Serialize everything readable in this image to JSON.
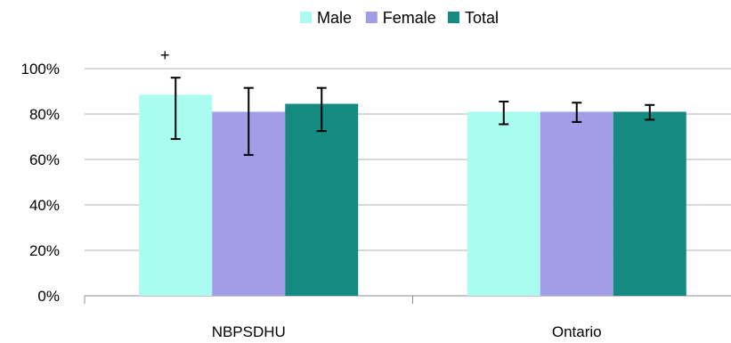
{
  "chart_data": {
    "type": "bar",
    "categories": [
      "NBPSDHU",
      "Ontario"
    ],
    "series": [
      {
        "name": "Male",
        "color": "#aafcf0",
        "values": [
          88.5,
          81
        ],
        "error_low": [
          69,
          75.5
        ],
        "error_high": [
          96,
          85.5
        ]
      },
      {
        "name": "Female",
        "color": "#a39de8",
        "values": [
          81,
          81
        ],
        "error_low": [
          62,
          76.5
        ],
        "error_high": [
          91.5,
          85
        ]
      },
      {
        "name": "Total",
        "color": "#148a80",
        "values": [
          84.5,
          81
        ],
        "error_low": [
          72.5,
          77.5
        ],
        "error_high": [
          91.5,
          84
        ]
      }
    ],
    "yticks": [
      "0%",
      "20%",
      "40%",
      "60%",
      "80%",
      "100%"
    ],
    "ytick_values": [
      0,
      20,
      40,
      60,
      80,
      100
    ],
    "ylim": [
      0,
      100
    ],
    "grid": true,
    "legend_position": "top",
    "annotations": [
      {
        "text": "+",
        "category": "NBPSDHU",
        "series": "Male"
      }
    ]
  }
}
